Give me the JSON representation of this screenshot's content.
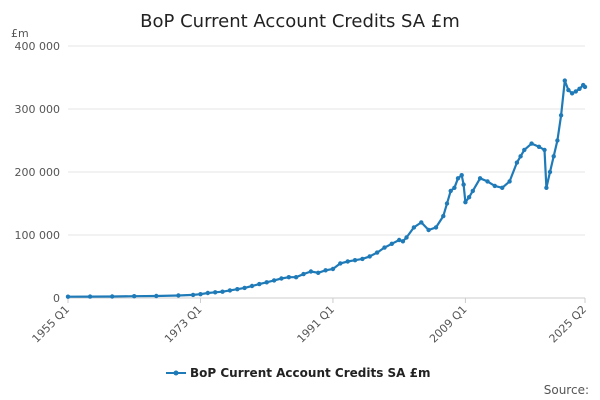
{
  "chart_data": {
    "type": "line",
    "title": "BoP Current Account Credits SA £m",
    "ylabel": "£m",
    "xlabel": "",
    "ylim": [
      0,
      400000
    ],
    "y_ticks": [
      {
        "value": 0,
        "label": "0"
      },
      {
        "value": 100000,
        "label": "100 000"
      },
      {
        "value": 200000,
        "label": "200 000"
      },
      {
        "value": 300000,
        "label": "300 000"
      },
      {
        "value": 400000,
        "label": "400 000"
      }
    ],
    "x_ticks": [
      {
        "value": 1955.0,
        "label": "1955 Q1"
      },
      {
        "value": 1973.0,
        "label": "1973 Q1"
      },
      {
        "value": 1991.0,
        "label": "1991 Q1"
      },
      {
        "value": 2009.0,
        "label": "2009 Q1"
      },
      {
        "value": 2025.25,
        "label": "2025 Q2"
      }
    ],
    "xlim": [
      1955.0,
      2025.25
    ],
    "grid": true,
    "legend_position": "bottom",
    "series": [
      {
        "name": "BoP Current Account Credits SA £m",
        "color": "#1f7ab8",
        "x": [
          1955.0,
          1958.0,
          1961.0,
          1964.0,
          1967.0,
          1970.0,
          1972.0,
          1973.0,
          1974.0,
          1975.0,
          1976.0,
          1977.0,
          1978.0,
          1979.0,
          1980.0,
          1981.0,
          1982.0,
          1983.0,
          1984.0,
          1985.0,
          1986.0,
          1987.0,
          1988.0,
          1989.0,
          1990.0,
          1991.0,
          1992.0,
          1993.0,
          1994.0,
          1995.0,
          1996.0,
          1997.0,
          1998.0,
          1999.0,
          2000.0,
          2000.5,
          2001.0,
          2002.0,
          2003.0,
          2004.0,
          2005.0,
          2006.0,
          2006.5,
          2007.0,
          2007.5,
          2008.0,
          2008.5,
          2008.75,
          2009.0,
          2009.5,
          2010.0,
          2011.0,
          2012.0,
          2013.0,
          2014.0,
          2015.0,
          2016.0,
          2016.5,
          2017.0,
          2018.0,
          2019.0,
          2019.75,
          2020.0,
          2020.5,
          2021.0,
          2021.5,
          2022.0,
          2022.5,
          2023.0,
          2023.5,
          2024.0,
          2024.5,
          2025.0,
          2025.25
        ],
        "values": [
          2000,
          2200,
          2400,
          2800,
          3200,
          4000,
          5000,
          6000,
          8000,
          9000,
          10000,
          12000,
          14000,
          16000,
          19000,
          22000,
          25000,
          28000,
          31000,
          33000,
          33000,
          38000,
          42000,
          40000,
          44000,
          46000,
          55000,
          58000,
          60000,
          62000,
          66000,
          72000,
          80000,
          86000,
          92000,
          90000,
          96000,
          112000,
          120000,
          108000,
          112000,
          130000,
          150000,
          170000,
          175000,
          190000,
          195000,
          180000,
          152000,
          160000,
          170000,
          190000,
          185000,
          178000,
          175000,
          185000,
          215000,
          225000,
          235000,
          245000,
          240000,
          235000,
          175000,
          200000,
          225000,
          250000,
          290000,
          345000,
          330000,
          325000,
          328000,
          332000,
          338000,
          335000
        ]
      }
    ]
  },
  "legend": {
    "label": "BoP Current Account Credits SA £m"
  },
  "footer": {
    "source": "Source:"
  }
}
